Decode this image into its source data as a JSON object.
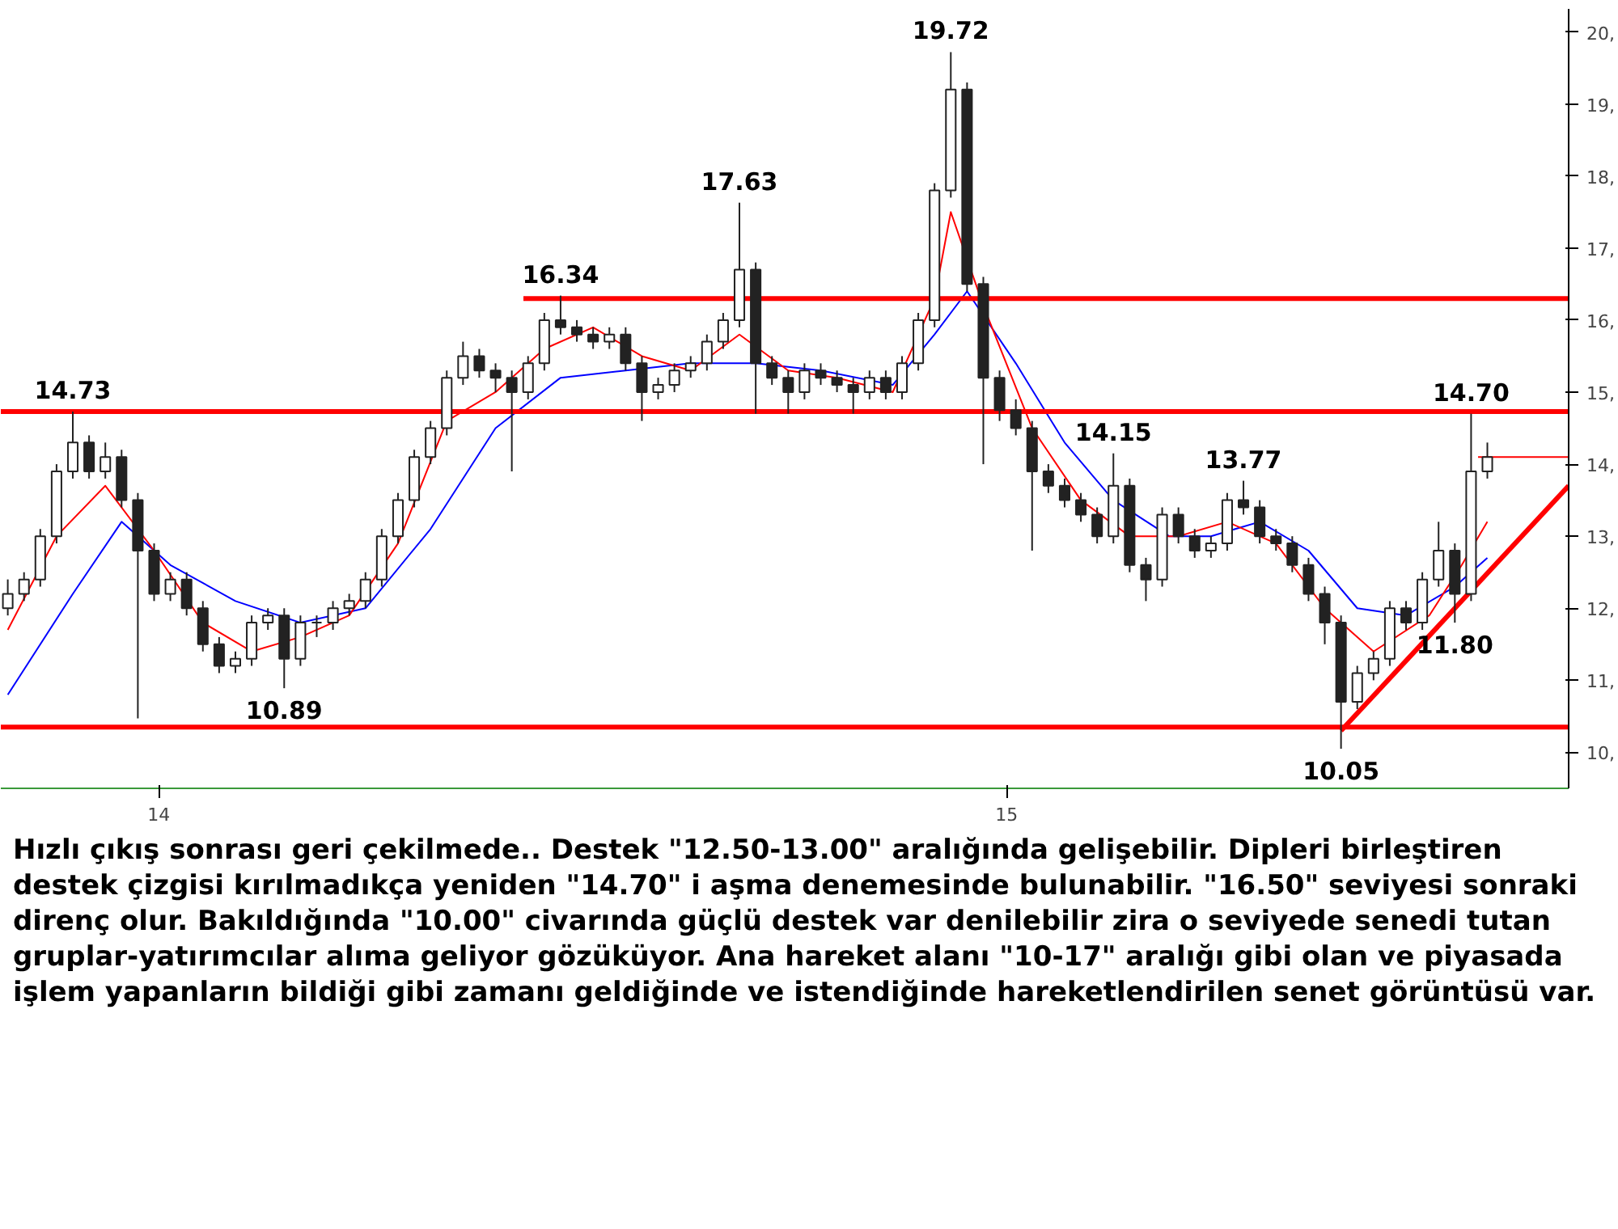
{
  "chart_data": {
    "type": "candlestick",
    "xlim": [
      "2013-10-25",
      "2015-08-31"
    ],
    "ylim": [
      9.5,
      20.32
    ],
    "xticks": [
      {
        "value": "2014-01-01",
        "label": "14"
      },
      {
        "value": "2015-01-01",
        "label": "15"
      }
    ],
    "yticks": [
      {
        "value": 10,
        "label": "10,"
      },
      {
        "value": 11,
        "label": "11,"
      },
      {
        "value": 12,
        "label": "12,"
      },
      {
        "value": 13,
        "label": "13,"
      },
      {
        "value": 14,
        "label": "14,"
      },
      {
        "value": 15,
        "label": "15,"
      },
      {
        "value": 16,
        "label": "16,"
      },
      {
        "value": 17,
        "label": "17,"
      },
      {
        "value": 18,
        "label": "18,"
      },
      {
        "value": 19,
        "label": "19,"
      },
      {
        "value": 20,
        "label": "20,"
      }
    ],
    "grid": false,
    "series": [
      {
        "type": "line",
        "color": "#0000ff",
        "x": [
          "2013-10-28",
          "2013-11-25",
          "2013-12-16",
          "2014-01-06",
          "2014-02-03",
          "2014-03-03",
          "2014-03-31",
          "2014-04-28",
          "2014-05-26",
          "2014-06-23",
          "2014-07-21",
          "2014-08-18",
          "2014-09-15",
          "2014-10-13",
          "2014-11-13",
          "2014-12-01",
          "2014-12-15",
          "2015-01-05",
          "2015-01-26",
          "2015-02-16",
          "2015-03-12",
          "2015-03-30",
          "2015-04-20",
          "2015-05-11",
          "2015-06-01",
          "2015-06-22",
          "2015-07-13",
          "2015-07-27"
        ],
        "values": [
          10.8,
          12.2,
          13.2,
          12.6,
          12.1,
          11.8,
          12.0,
          13.1,
          14.5,
          15.2,
          15.3,
          15.4,
          15.4,
          15.3,
          15.1,
          15.8,
          16.4,
          15.4,
          14.3,
          13.5,
          13.0,
          13.0,
          13.2,
          12.8,
          12.0,
          11.9,
          12.3,
          12.7
        ]
      },
      {
        "type": "line",
        "color": "#ff0000",
        "x": [
          "2013-10-28",
          "2013-11-18",
          "2013-12-09",
          "2013-12-30",
          "2014-01-20",
          "2014-02-10",
          "2014-03-03",
          "2014-03-24",
          "2014-04-14",
          "2014-05-05",
          "2014-05-26",
          "2014-06-16",
          "2014-07-07",
          "2014-07-28",
          "2014-08-18",
          "2014-09-08",
          "2014-09-29",
          "2014-10-20",
          "2014-11-13",
          "2014-12-01",
          "2014-12-08",
          "2014-12-22",
          "2015-01-12",
          "2015-02-02",
          "2015-02-23",
          "2015-03-16",
          "2015-04-06",
          "2015-04-27",
          "2015-05-18",
          "2015-06-08",
          "2015-07-02",
          "2015-07-16",
          "2015-07-27"
        ],
        "values": [
          11.7,
          13.0,
          13.7,
          12.8,
          11.8,
          11.4,
          11.6,
          11.9,
          12.9,
          14.6,
          15.0,
          15.6,
          15.9,
          15.5,
          15.3,
          15.8,
          15.3,
          15.2,
          15.0,
          16.3,
          17.5,
          16.2,
          14.5,
          13.5,
          13.0,
          13.0,
          13.2,
          12.9,
          12.0,
          11.4,
          11.9,
          12.6,
          13.2
        ]
      },
      {
        "type": "line",
        "color": "#ff0000",
        "x": [
          "2014-06-07",
          "2015-08-31"
        ],
        "values": [
          16.3,
          16.3
        ]
      },
      {
        "type": "line",
        "color": "#ff0000",
        "x": [
          "2013-10-25",
          "2015-08-31"
        ],
        "values": [
          14.73,
          14.73
        ]
      },
      {
        "type": "line",
        "color": "#ff0000",
        "x": [
          "2013-10-25",
          "2015-08-31"
        ],
        "values": [
          10.35,
          10.35
        ]
      },
      {
        "type": "line",
        "color": "#ff0000",
        "x": [
          "2015-05-25",
          "2015-08-31"
        ],
        "values": [
          10.3,
          13.7
        ]
      },
      {
        "type": "line",
        "color": "#ff0000",
        "x": [
          "2015-07-23",
          "2015-08-31",
          "2015-08-31"
        ],
        "values": [
          14.1,
          14.1,
          14.1
        ]
      },
      {
        "x": [
          "2013-10-28",
          "2013-11-04",
          "2013-11-11",
          "2013-11-18",
          "2013-11-25",
          "2013-12-02",
          "2013-12-09",
          "2013-12-16",
          "2013-12-23",
          "2013-12-30",
          "2014-01-06",
          "2014-01-13",
          "2014-01-20",
          "2014-01-27",
          "2014-02-03",
          "2014-02-10",
          "2014-02-17",
          "2014-02-24",
          "2014-03-03",
          "2014-03-10",
          "2014-03-17",
          "2014-03-24",
          "2014-03-31",
          "2014-04-07",
          "2014-04-14",
          "2014-04-21",
          "2014-04-28",
          "2014-05-05",
          "2014-05-12",
          "2014-05-19",
          "2014-05-26",
          "2014-06-02",
          "2014-06-09",
          "2014-06-16",
          "2014-06-23",
          "2014-06-30",
          "2014-07-07",
          "2014-07-14",
          "2014-07-21",
          "2014-07-28",
          "2014-08-04",
          "2014-08-11",
          "2014-08-18",
          "2014-08-25",
          "2014-09-01",
          "2014-09-08",
          "2014-09-15",
          "2014-09-22",
          "2014-09-29",
          "2014-10-06",
          "2014-10-13",
          "2014-10-20",
          "2014-10-27",
          "2014-11-03",
          "2014-11-10",
          "2014-11-17",
          "2014-11-24",
          "2014-12-01",
          "2014-12-08",
          "2014-12-15",
          "2014-12-22",
          "2014-12-29",
          "2015-01-05",
          "2015-01-12",
          "2015-01-19",
          "2015-01-26",
          "2015-02-02",
          "2015-02-09",
          "2015-02-16",
          "2015-02-23",
          "2015-03-02",
          "2015-03-09",
          "2015-03-16",
          "2015-03-23",
          "2015-03-30",
          "2015-04-06",
          "2015-04-13",
          "2015-04-20",
          "2015-04-27",
          "2015-05-04",
          "2015-05-11",
          "2015-05-18",
          "2015-05-25",
          "2015-06-01",
          "2015-06-08",
          "2015-06-15",
          "2015-06-22",
          "2015-06-29",
          "2015-07-06",
          "2015-07-13",
          "2015-07-20",
          "2015-07-27"
        ],
        "ohlc": [
          [
            12.0,
            12.4,
            11.9,
            12.2
          ],
          [
            12.2,
            12.5,
            12.1,
            12.4
          ],
          [
            12.4,
            13.1,
            12.3,
            13.0
          ],
          [
            13.0,
            14.0,
            12.9,
            13.9
          ],
          [
            13.9,
            14.73,
            13.8,
            14.3
          ],
          [
            14.3,
            14.4,
            13.8,
            13.9
          ],
          [
            13.9,
            14.3,
            13.8,
            14.1
          ],
          [
            14.1,
            14.2,
            13.4,
            13.5
          ],
          [
            13.5,
            13.6,
            10.47,
            12.8
          ],
          [
            12.8,
            12.9,
            12.1,
            12.2
          ],
          [
            12.2,
            12.5,
            12.1,
            12.4
          ],
          [
            12.4,
            12.5,
            11.9,
            12.0
          ],
          [
            12.0,
            12.1,
            11.4,
            11.5
          ],
          [
            11.5,
            11.6,
            11.1,
            11.2
          ],
          [
            11.2,
            11.4,
            11.1,
            11.3
          ],
          [
            11.3,
            11.9,
            11.2,
            11.8
          ],
          [
            11.8,
            12.0,
            11.7,
            11.9
          ],
          [
            11.9,
            12.0,
            10.89,
            11.3
          ],
          [
            11.3,
            11.9,
            11.2,
            11.8
          ],
          [
            11.8,
            11.9,
            11.6,
            11.8
          ],
          [
            11.8,
            12.1,
            11.7,
            12.0
          ],
          [
            12.0,
            12.2,
            11.9,
            12.1
          ],
          [
            12.1,
            12.5,
            12.0,
            12.4
          ],
          [
            12.4,
            13.1,
            12.3,
            13.0
          ],
          [
            13.0,
            13.6,
            12.9,
            13.5
          ],
          [
            13.5,
            14.2,
            13.4,
            14.1
          ],
          [
            14.1,
            14.6,
            14.0,
            14.5
          ],
          [
            14.5,
            15.3,
            14.4,
            15.2
          ],
          [
            15.2,
            15.7,
            15.1,
            15.5
          ],
          [
            15.5,
            15.6,
            15.2,
            15.3
          ],
          [
            15.3,
            15.4,
            15.0,
            15.2
          ],
          [
            15.2,
            15.3,
            13.9,
            15.0
          ],
          [
            15.0,
            15.5,
            14.9,
            15.4
          ],
          [
            15.4,
            16.1,
            15.3,
            16.0
          ],
          [
            16.0,
            16.34,
            15.8,
            15.9
          ],
          [
            15.9,
            16.0,
            15.7,
            15.8
          ],
          [
            15.8,
            15.9,
            15.6,
            15.7
          ],
          [
            15.7,
            15.9,
            15.6,
            15.8
          ],
          [
            15.8,
            15.9,
            15.3,
            15.4
          ],
          [
            15.4,
            15.5,
            14.6,
            15.0
          ],
          [
            15.0,
            15.2,
            14.9,
            15.1
          ],
          [
            15.1,
            15.4,
            15.0,
            15.3
          ],
          [
            15.3,
            15.5,
            15.2,
            15.4
          ],
          [
            15.4,
            15.8,
            15.3,
            15.7
          ],
          [
            15.7,
            16.1,
            15.6,
            16.0
          ],
          [
            16.0,
            17.63,
            15.9,
            16.7
          ],
          [
            16.7,
            16.8,
            14.7,
            15.4
          ],
          [
            15.4,
            15.5,
            15.1,
            15.2
          ],
          [
            15.2,
            15.3,
            14.7,
            15.0
          ],
          [
            15.0,
            15.4,
            14.9,
            15.3
          ],
          [
            15.3,
            15.4,
            15.1,
            15.2
          ],
          [
            15.2,
            15.3,
            15.0,
            15.1
          ],
          [
            15.1,
            15.2,
            14.7,
            15.0
          ],
          [
            15.0,
            15.3,
            14.9,
            15.2
          ],
          [
            15.2,
            15.3,
            14.9,
            15.0
          ],
          [
            15.0,
            15.5,
            14.9,
            15.4
          ],
          [
            15.4,
            16.1,
            15.3,
            16.0
          ],
          [
            16.0,
            17.9,
            15.9,
            17.8
          ],
          [
            17.8,
            19.72,
            17.7,
            19.2
          ],
          [
            19.2,
            19.3,
            16.4,
            16.5
          ],
          [
            16.5,
            16.6,
            14.0,
            15.2
          ],
          [
            15.2,
            15.3,
            14.6,
            14.75
          ],
          [
            14.75,
            14.9,
            14.4,
            14.5
          ],
          [
            14.5,
            14.6,
            12.8,
            13.9
          ],
          [
            13.9,
            14.0,
            13.6,
            13.7
          ],
          [
            13.7,
            13.8,
            13.4,
            13.5
          ],
          [
            13.5,
            13.6,
            13.2,
            13.3
          ],
          [
            13.3,
            13.4,
            12.9,
            13.0
          ],
          [
            13.0,
            14.15,
            12.9,
            13.7
          ],
          [
            13.7,
            13.8,
            12.5,
            12.6
          ],
          [
            12.6,
            12.7,
            12.1,
            12.4
          ],
          [
            12.4,
            13.4,
            12.3,
            13.3
          ],
          [
            13.3,
            13.4,
            12.9,
            13.0
          ],
          [
            13.0,
            13.1,
            12.7,
            12.8
          ],
          [
            12.8,
            13.0,
            12.7,
            12.9
          ],
          [
            12.9,
            13.6,
            12.8,
            13.5
          ],
          [
            13.5,
            13.77,
            13.3,
            13.4
          ],
          [
            13.4,
            13.5,
            12.9,
            13.0
          ],
          [
            13.0,
            13.1,
            12.8,
            12.9
          ],
          [
            12.9,
            13.0,
            12.5,
            12.6
          ],
          [
            12.6,
            12.7,
            12.1,
            12.2
          ],
          [
            12.2,
            12.3,
            11.5,
            11.8
          ],
          [
            11.8,
            11.9,
            10.05,
            10.7
          ],
          [
            10.7,
            11.2,
            10.6,
            11.1
          ],
          [
            11.1,
            11.4,
            11.0,
            11.3
          ],
          [
            11.3,
            12.1,
            11.2,
            12.0
          ],
          [
            12.0,
            12.1,
            11.7,
            11.8
          ],
          [
            11.8,
            12.5,
            11.7,
            12.4
          ],
          [
            12.4,
            13.2,
            12.3,
            12.8
          ],
          [
            12.8,
            12.9,
            11.8,
            12.2
          ],
          [
            12.2,
            14.7,
            12.1,
            13.9
          ],
          [
            13.9,
            14.3,
            13.8,
            14.1
          ]
        ]
      }
    ],
    "annotations": [
      {
        "text": "14.73",
        "x": "2013-11-25",
        "y": 14.73
      },
      {
        "text": "10.89",
        "x": "2014-02-24",
        "y": 10.89
      },
      {
        "text": "16.34",
        "x": "2014-06-23",
        "y": 16.34
      },
      {
        "text": "17.63",
        "x": "2014-09-08",
        "y": 17.63
      },
      {
        "text": "19.72",
        "x": "2014-12-08",
        "y": 19.72
      },
      {
        "text": "14.15",
        "x": "2015-02-16",
        "y": 14.15
      },
      {
        "text": "13.77",
        "x": "2015-04-13",
        "y": 13.77
      },
      {
        "text": "10.05",
        "x": "2015-05-25",
        "y": 10.05
      },
      {
        "text": "11.80",
        "x": "2015-07-13",
        "y": 11.8
      },
      {
        "text": "14.70",
        "x": "2015-07-20",
        "y": 14.7
      },
      "Hızlı çıkış sonrası geri çekilmede.. Destek \"12.50-13.00\" aralığında gelişebilir. Dipleri birleştiren destek çizgisi kırılmadıkça yeniden \"14.70\" i aşma denemesinde bulunabilir. \"16.50\" seviyesi sonraki direnç olur. Bakıldığında \"10.00\" civarında güçlü destek var denilebilir zira o seviyede senedi tutan gruplar-yatırımcılar alıma geliyor gözüküyor. Ana hareket alanı \"10-17\" aralığı gibi olan ve piyasada işlem yapanların bildiği gibi zamanı geldiğinde ve istendiğinde hareketlendirilen senet görüntüsü var."
    ]
  }
}
